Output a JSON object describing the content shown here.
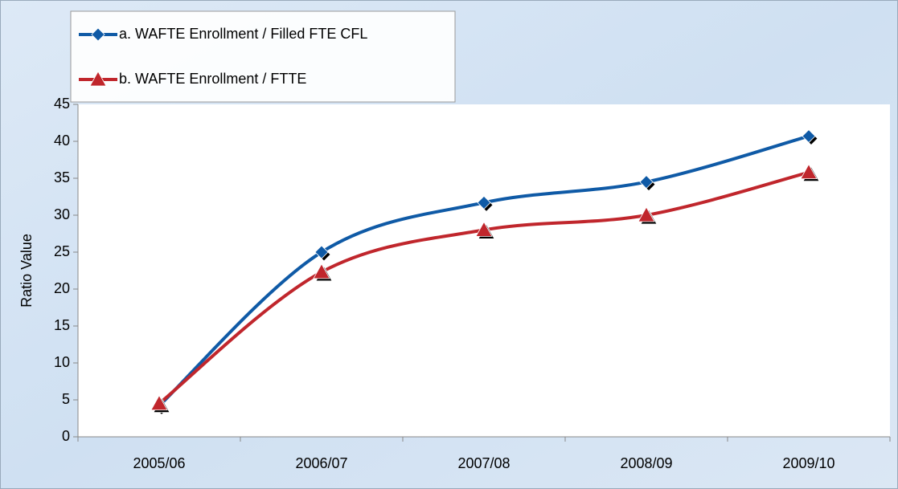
{
  "chart_data": {
    "type": "line",
    "y_label": "Ratio Value",
    "categories": [
      "2005/06",
      "2006/07",
      "2007/08",
      "2008/09",
      "2009/10"
    ],
    "series": [
      {
        "name": "a. WAFTE Enrollment / Filled FTE CFL",
        "color": "#0f5aa6",
        "marker": "diamond",
        "values": [
          4.2,
          25.0,
          31.7,
          34.5,
          40.7
        ]
      },
      {
        "name": "b. WAFTE Enrollment / FTTE",
        "color": "#c0262c",
        "marker": "triangle",
        "values": [
          4.5,
          22.3,
          28.0,
          30.0,
          35.8
        ]
      }
    ],
    "ylim": [
      0,
      45
    ],
    "yticks": [
      0,
      5,
      10,
      15,
      20,
      25,
      30,
      35,
      40,
      45
    ],
    "smooth": true,
    "legend": "top-left"
  }
}
